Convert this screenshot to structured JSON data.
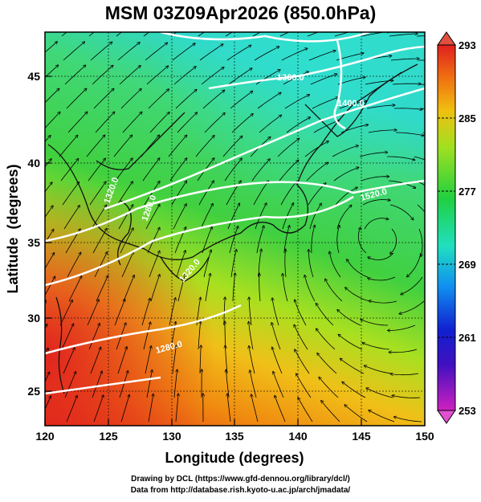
{
  "title": "MSM 03Z09Apr2026 (850.0hPa)",
  "axes": {
    "xlabel": "Longitude (degrees)",
    "ylabel": "Latitude  (degrees)",
    "x_ticks": [
      "120",
      "125",
      "130",
      "135",
      "140",
      "145",
      "150"
    ],
    "y_ticks": [
      "25",
      "30",
      "35",
      "40",
      "45"
    ],
    "xlim": [
      120,
      150
    ],
    "ylim": [
      22.5,
      47.5
    ]
  },
  "colorbar": {
    "ticks": [
      "293",
      "285",
      "277",
      "269",
      "261",
      "253"
    ],
    "range": [
      253,
      293
    ],
    "colors": [
      "#d020c0",
      "#1010c0",
      "#1090f0",
      "#20e0c0",
      "#20d040",
      "#a0e020",
      "#f0c010",
      "#f07010",
      "#e02020"
    ]
  },
  "contours": {
    "labels": [
      "1360.0",
      "1400.0",
      "1320.0",
      "1280.0",
      "1320.0",
      "1280.0",
      "1520.0"
    ]
  },
  "credits": {
    "line1": "Drawing by DCL (https://www.gfd-dennou.org/library/dcl/)",
    "line2": "Data from http://database.rish.kyoto-u.ac.jp/arch/jmadata/"
  }
}
